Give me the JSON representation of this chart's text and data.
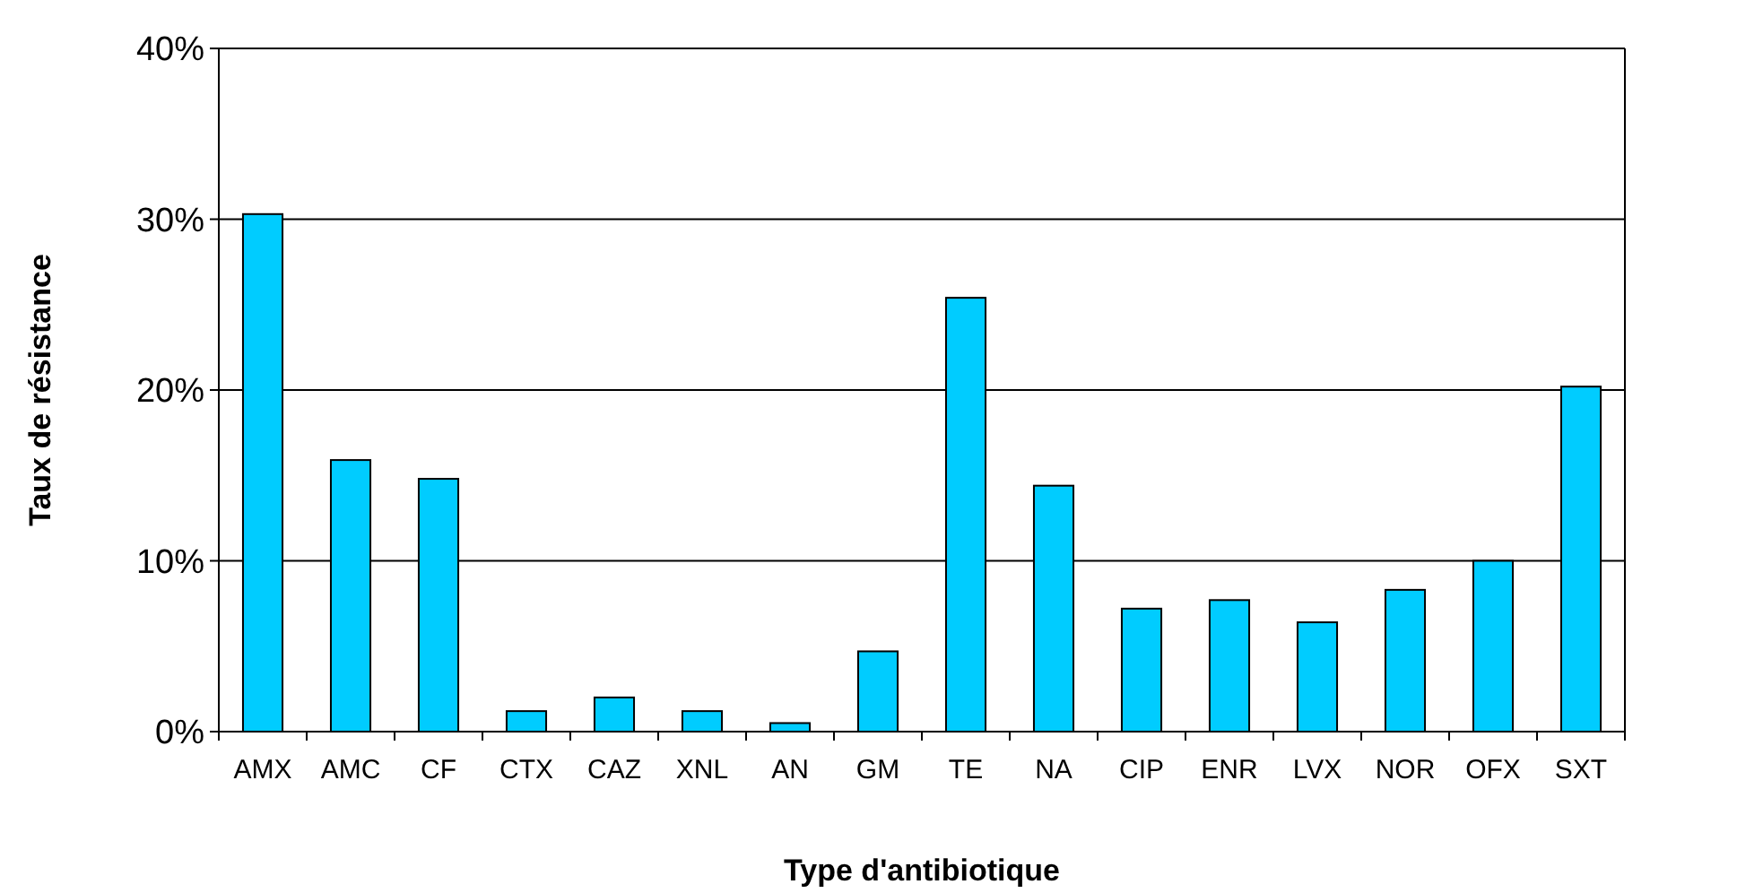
{
  "chart_data": {
    "type": "bar",
    "xlabel": "Type d'antibiotique",
    "ylabel": "Taux de résistance",
    "categories": [
      "AMX",
      "AMC",
      "CF",
      "CTX",
      "CAZ",
      "XNL",
      "AN",
      "GM",
      "TE",
      "NA",
      "CIP",
      "ENR",
      "LVX",
      "NOR",
      "OFX",
      "SXT"
    ],
    "values": [
      30.3,
      15.9,
      14.8,
      1.2,
      2.0,
      1.2,
      0.5,
      4.7,
      25.4,
      14.4,
      7.2,
      7.7,
      6.4,
      8.3,
      10.0,
      20.2
    ],
    "color": "#00ccff",
    "ylim": [
      0,
      40
    ],
    "yticks": [
      {
        "value": 0,
        "label": "0%"
      },
      {
        "value": 10,
        "label": "10%"
      },
      {
        "value": 20,
        "label": "20%"
      },
      {
        "value": 30,
        "label": "30%"
      },
      {
        "value": 40,
        "label": "40%"
      }
    ],
    "grid": "y"
  }
}
